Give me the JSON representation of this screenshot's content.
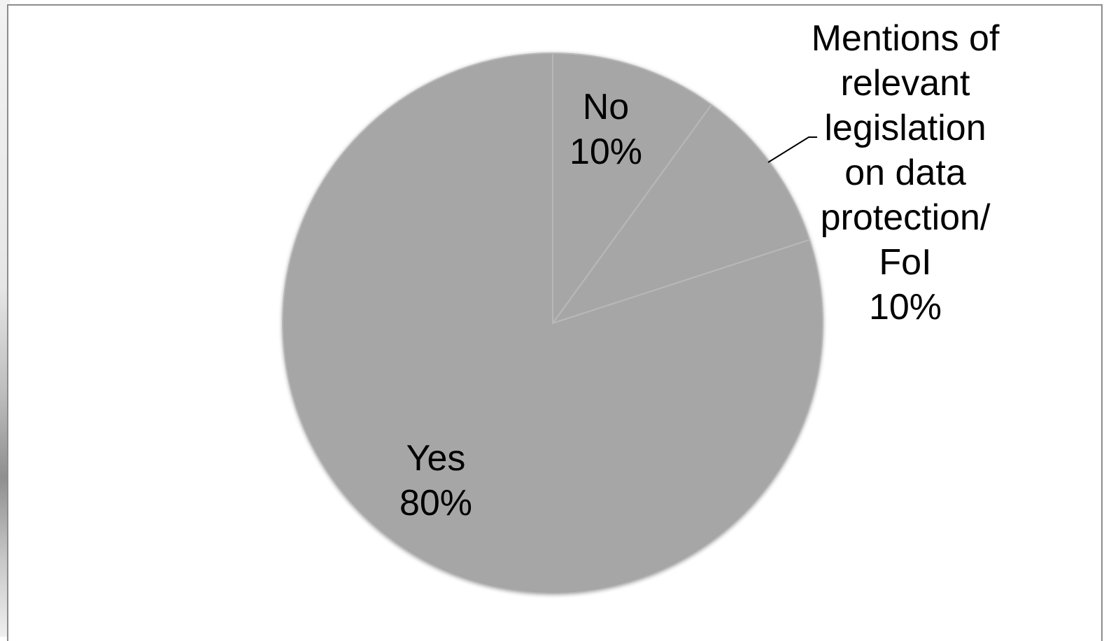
{
  "chart_data": {
    "type": "pie",
    "title": "",
    "slices": [
      {
        "label": "No",
        "value": 10,
        "value_label": "10%",
        "label_lines": [
          "No"
        ]
      },
      {
        "label": "Mentions of relevant legislation on data protection/ FoI",
        "value": 10,
        "value_label": "10%",
        "label_lines": [
          "Mentions of",
          "relevant",
          "legislation",
          "on data",
          "protection/",
          "FoI"
        ]
      },
      {
        "label": "Yes",
        "value": 80,
        "value_label": "80%",
        "label_lines": [
          "Yes"
        ]
      }
    ],
    "start_angle_deg": 0,
    "direction": "clockwise",
    "legend": "none",
    "colors": {
      "slice_fill": "#a6a6a6",
      "slice_edge": "#b8b8b8",
      "label_text": "#000000",
      "leader_line": "#000000"
    }
  }
}
